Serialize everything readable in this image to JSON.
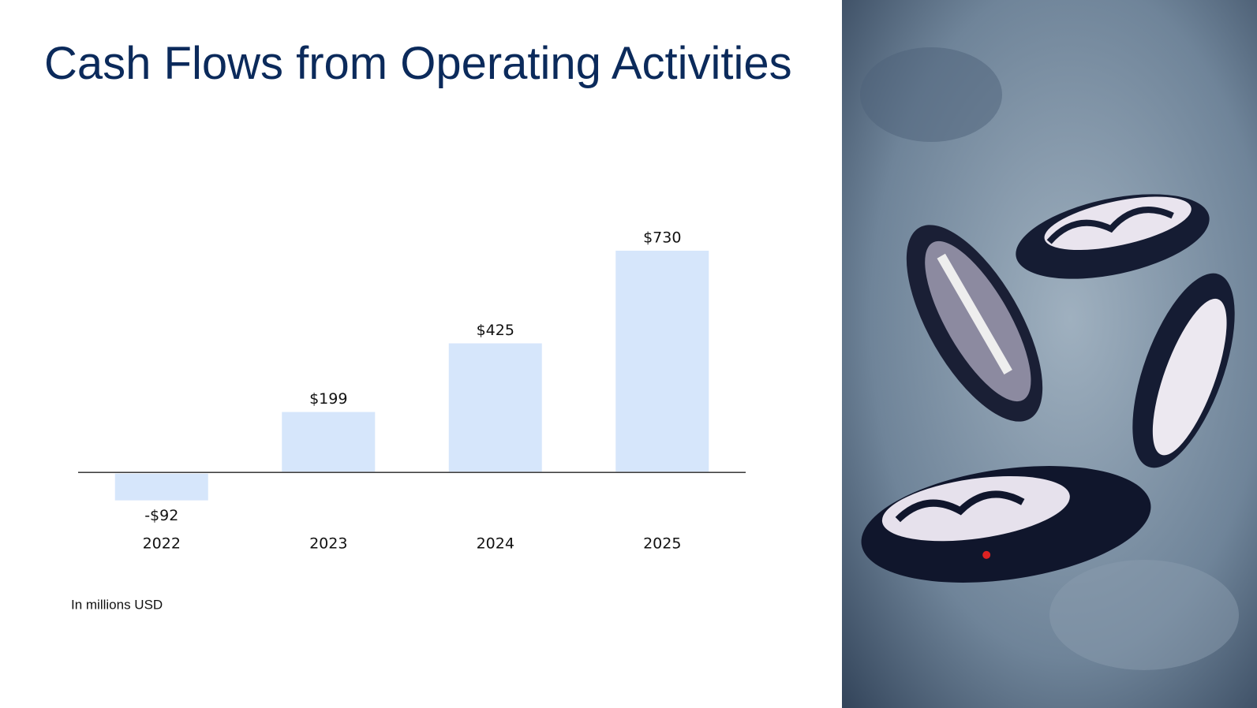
{
  "chart_data": {
    "type": "bar",
    "title": "Cash Flows from Operating Activities",
    "categories": [
      "2022",
      "2023",
      "2024",
      "2025"
    ],
    "values": [
      -92,
      199,
      425,
      730
    ],
    "value_labels": [
      "-$92",
      "$199",
      "$425",
      "$730"
    ],
    "color": "#d6e6fb",
    "ylim": [
      -150,
      800
    ],
    "note": "In millions USD"
  }
}
